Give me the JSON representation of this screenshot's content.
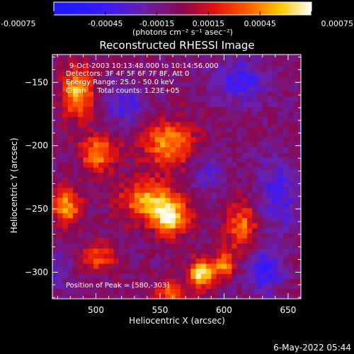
{
  "footer": {
    "date": "6-May-2022 05:44"
  },
  "colorbar": {
    "tick_labels": [
      "-0.00075",
      "-0.00045",
      "-0.00015",
      "0.00015",
      "0.00045",
      "0.00075"
    ],
    "tick_values": [
      -0.00075,
      -0.00045,
      -0.00015,
      0.00015,
      0.00045,
      0.00075
    ],
    "range": [
      -0.00075,
      0.00075
    ],
    "unit_label": "(photons cm⁻² s⁻¹ asec⁻²)",
    "colormap": "rhessi-blue-purple-red-yellow-white",
    "colors": {
      "low": "#2233ff",
      "mid": "#6a1fa8",
      "high": "#ff3a00",
      "peak": "#ffffff"
    }
  },
  "chart_data": {
    "type": "heatmap",
    "title": "Reconstructed RHESSI Image",
    "xlabel": "Heliocentric X (arcsec)",
    "ylabel": "Heliocentric Y (arcsec)",
    "xlim": [
      466,
      660
    ],
    "ylim": [
      -321,
      -128
    ],
    "xticks": [
      500,
      550,
      600,
      650
    ],
    "yticks": [
      -150,
      -200,
      -250,
      -300
    ],
    "annotations": [
      "9-Oct-2003 10:13:48.000 to 10:14:56.000",
      "Detectors: 3F 4F 5F 6F 7F 8F, Att 0",
      "Energy Range: 25.0 - 50.0 keV",
      "Clean     Total counts: 1.23E+05"
    ],
    "peak_label": "Position of Peak = [580,-303]",
    "peak": [
      580,
      -303
    ],
    "grid_step_arcsec": 4,
    "sources": [
      {
        "x": 484,
        "y": -160,
        "amp": 0.00062,
        "sx": 9,
        "sy": 14
      },
      {
        "x": 500,
        "y": -208,
        "amp": 0.00052,
        "sx": 10,
        "sy": 10
      },
      {
        "x": 555,
        "y": -200,
        "amp": 0.00055,
        "sx": 14,
        "sy": 13
      },
      {
        "x": 475,
        "y": -250,
        "amp": 0.00058,
        "sx": 8,
        "sy": 10
      },
      {
        "x": 540,
        "y": -245,
        "amp": 0.0006,
        "sx": 16,
        "sy": 11
      },
      {
        "x": 557,
        "y": -260,
        "amp": 0.00066,
        "sx": 10,
        "sy": 9
      },
      {
        "x": 612,
        "y": -265,
        "amp": 0.00048,
        "sx": 9,
        "sy": 14
      },
      {
        "x": 500,
        "y": -290,
        "amp": 0.0004,
        "sx": 10,
        "sy": 8
      },
      {
        "x": 580,
        "y": -303,
        "amp": 0.00075,
        "sx": 7,
        "sy": 8
      },
      {
        "x": 556,
        "y": -318,
        "amp": 0.00045,
        "sx": 8,
        "sy": 6
      },
      {
        "x": 598,
        "y": -296,
        "amp": 0.00055,
        "sx": 6,
        "sy": 7
      },
      {
        "x": 520,
        "y": -170,
        "amp": -0.0003,
        "sx": 12,
        "sy": 10
      },
      {
        "x": 610,
        "y": -150,
        "amp": -0.00035,
        "sx": 14,
        "sy": 12
      },
      {
        "x": 640,
        "y": -240,
        "amp": -0.0003,
        "sx": 12,
        "sy": 20
      },
      {
        "x": 630,
        "y": -300,
        "amp": -0.0004,
        "sx": 10,
        "sy": 12
      },
      {
        "x": 470,
        "y": -300,
        "amp": -0.0002,
        "sx": 8,
        "sy": 10
      },
      {
        "x": 585,
        "y": -225,
        "amp": -0.00025,
        "sx": 10,
        "sy": 10
      }
    ]
  }
}
